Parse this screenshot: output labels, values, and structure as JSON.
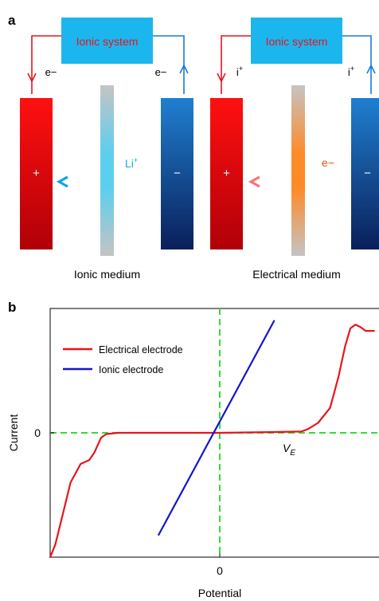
{
  "panel_a": {
    "label": "a",
    "left": {
      "system_label": "Ionic system",
      "left_carrier": "e−",
      "right_carrier": "e−",
      "plus": "+",
      "minus": "−",
      "mobile_ion": "Li",
      "mobile_ion_sup": "+",
      "medium": "Ionic medium"
    },
    "right": {
      "system_label": "Ionic system",
      "left_carrier": "i",
      "left_carrier_sup": "+",
      "right_carrier": "i",
      "right_carrier_sup": "+",
      "plus": "+",
      "minus": "−",
      "mobile_carrier": "e−",
      "medium": "Electrical medium"
    }
  },
  "panel_b": {
    "label": "b"
  },
  "chart_data": {
    "type": "line",
    "xlabel": "Potential",
    "ylabel": "Current",
    "xticks": [
      "0"
    ],
    "yticks": [
      "0"
    ],
    "annotation": {
      "text": "V",
      "subscript": "E"
    },
    "legend_position": "top-left",
    "grid": false,
    "series": [
      {
        "name": "Electrical electrode",
        "color": "#e8141c",
        "points": [
          [
            -1.0,
            -1.0
          ],
          [
            -0.97,
            -0.9
          ],
          [
            -0.93,
            -0.68
          ],
          [
            -0.88,
            -0.4
          ],
          [
            -0.82,
            -0.25
          ],
          [
            -0.77,
            -0.22
          ],
          [
            -0.74,
            -0.16
          ],
          [
            -0.7,
            -0.04
          ],
          [
            -0.67,
            -0.01
          ],
          [
            -0.6,
            0.0
          ],
          [
            -0.2,
            0.0
          ],
          [
            0.0,
            0.0
          ],
          [
            0.3,
            0.006
          ],
          [
            0.48,
            0.01
          ],
          [
            0.52,
            0.03
          ],
          [
            0.58,
            0.08
          ],
          [
            0.65,
            0.2
          ],
          [
            0.7,
            0.45
          ],
          [
            0.74,
            0.7
          ],
          [
            0.77,
            0.84
          ],
          [
            0.8,
            0.87
          ],
          [
            0.83,
            0.85
          ],
          [
            0.86,
            0.82
          ],
          [
            0.91,
            0.82
          ]
        ]
      },
      {
        "name": "Ionic electrode",
        "color": "#1414d2",
        "points": [
          [
            -0.36,
            -0.82
          ],
          [
            0.32,
            0.9
          ]
        ]
      }
    ],
    "dashed_zero_lines_color": "#33dd33"
  }
}
